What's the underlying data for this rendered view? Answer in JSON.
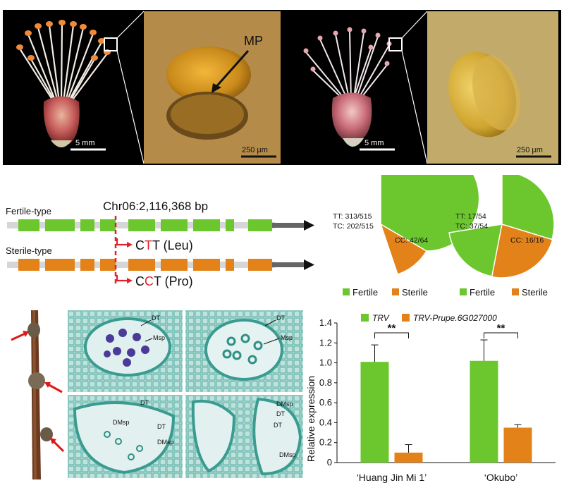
{
  "panel_a": {
    "mp_label": "MP",
    "scale_flower_left": "5 mm",
    "scale_zoom_left": "250 µm",
    "scale_flower_right": "5 mm",
    "scale_zoom_right": "250 µm"
  },
  "panel_b": {
    "locus": "Chr06:2,116,368 bp",
    "fertile_type": "Fertile-type",
    "sterile_type": "Sterile-type",
    "codon_fertile": {
      "pre": "C",
      "mut": "T",
      "post": "T (Leu)"
    },
    "codon_sterile": {
      "pre": "C",
      "mut": "C",
      "post": "T (Pro)"
    },
    "colors": {
      "fertile": "#6cc72e",
      "sterile": "#e4821a",
      "mut": "#e0202a"
    }
  },
  "pies": [
    {
      "tt_label": "TT: 313/515",
      "tc_label": "TC: 202/515",
      "cc_label": "CC: 42/64"
    },
    {
      "tt_label": "TT: 17/54",
      "tc_label": "TC: 37/54",
      "cc_label": "CC: 16/16"
    }
  ],
  "pie_legend": {
    "fertile": "Fertile",
    "sterile": "Sterile"
  },
  "histology": {
    "top_left": [
      "DT",
      "Msp"
    ],
    "top_right": [
      "DT",
      "Msp"
    ],
    "bottom_left": [
      "DT",
      "DMsp",
      "DT",
      "DMsp"
    ],
    "bottom_right": [
      "DMsp",
      "DT",
      "DT",
      "DMsp"
    ]
  },
  "chart_data": {
    "type": "bar",
    "categories": [
      "‘Huang Jin Mi 1’",
      "‘Okubo’"
    ],
    "series": [
      {
        "name": "TRV",
        "values": [
          1.01,
          1.02
        ],
        "errors": [
          0.17,
          0.21
        ],
        "color": "#6cc72e"
      },
      {
        "name": "TRV-Prupe.6G027000",
        "values": [
          0.1,
          0.35
        ],
        "errors": [
          0.08,
          0.03
        ],
        "color": "#e4821a"
      }
    ],
    "ylabel": "Relative expression",
    "ylim": [
      0,
      1.4
    ],
    "yticks": [
      "0",
      "0.2",
      "0.4",
      "0.6",
      "0.8",
      "1.0",
      "1.2",
      "1.4"
    ],
    "significance": [
      "**",
      "**"
    ]
  }
}
